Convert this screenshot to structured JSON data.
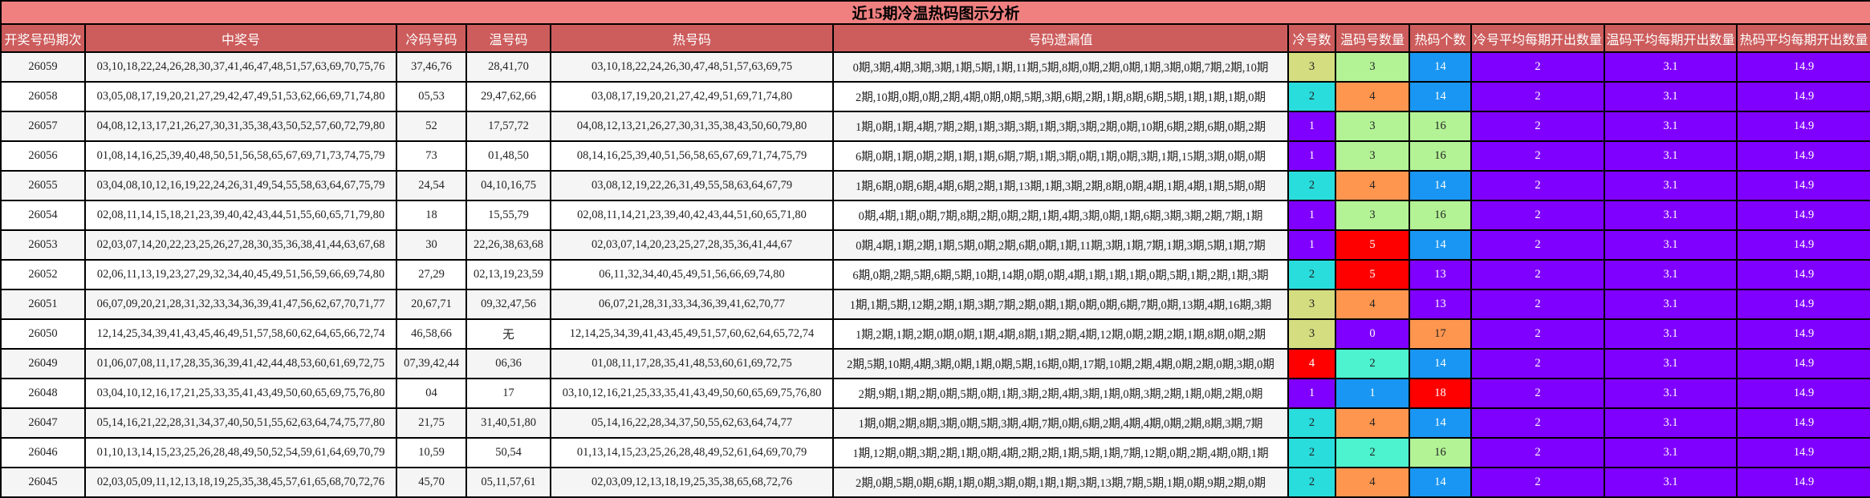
{
  "title": "近15期冷温热码图示分析",
  "headers": [
    "开奖号码期次",
    "中奖号",
    "冷码号码",
    "温号码",
    "热号码",
    "号码遗漏值",
    "冷号数",
    "温码号数量",
    "热码个数",
    "冷号平均每期开出数量",
    "温码平均每期开出数量",
    "热码平均每期开出数量"
  ],
  "colors": {
    "header_bg": "#cd5c5c",
    "title_bg": "#f08080",
    "purple": "#8000ff",
    "cyan": "#2adddd",
    "khaki": "#d4dd80",
    "red": "#ff0000",
    "blue": "#1996f3",
    "aqua": "#4df3ce",
    "green": "#b3f396",
    "orange": "#ff964f"
  },
  "rows": [
    {
      "issue": "26059",
      "winning": "03,10,18,22,24,26,28,30,37,41,46,47,48,51,57,63,69,70,75,76",
      "cold": "37,46,76",
      "warm": "28,41,70",
      "hot": "03,10,18,22,24,26,30,47,48,51,57,63,69,75",
      "missing": "0期,3期,4期,3期,3期,1期,5期,1期,11期,5期,8期,0期,2期,0期,1期,3期,0期,7期,2期,10期",
      "cold_count": "3",
      "warm_count": "3",
      "hot_count": "14",
      "cold_avg": "2",
      "warm_avg": "3.1",
      "hot_avg": "14.9",
      "cold_color": "#d4dd80",
      "warm_color": "#b3f396",
      "hot_color": "#1996f3"
    },
    {
      "issue": "26058",
      "winning": "03,05,08,17,19,20,21,27,29,42,47,49,51,53,62,66,69,71,74,80",
      "cold": "05,53",
      "warm": "29,47,62,66",
      "hot": "03,08,17,19,20,21,27,42,49,51,69,71,74,80",
      "missing": "2期,10期,0期,0期,2期,4期,0期,0期,5期,3期,6期,2期,1期,8期,6期,5期,1期,1期,1期,0期",
      "cold_count": "2",
      "warm_count": "4",
      "hot_count": "14",
      "cold_avg": "2",
      "warm_avg": "3.1",
      "hot_avg": "14.9",
      "cold_color": "#2adddd",
      "warm_color": "#ff964f",
      "hot_color": "#1996f3"
    },
    {
      "issue": "26057",
      "winning": "04,08,12,13,17,21,26,27,30,31,35,38,43,50,52,57,60,72,79,80",
      "cold": "52",
      "warm": "17,57,72",
      "hot": "04,08,12,13,21,26,27,30,31,35,38,43,50,60,79,80",
      "missing": "1期,0期,1期,4期,7期,2期,1期,3期,3期,1期,3期,3期,2期,0期,10期,6期,2期,6期,0期,2期",
      "cold_count": "1",
      "warm_count": "3",
      "hot_count": "16",
      "cold_avg": "2",
      "warm_avg": "3.1",
      "hot_avg": "14.9",
      "cold_color": "#8000ff",
      "warm_color": "#b3f396",
      "hot_color": "#b3f396"
    },
    {
      "issue": "26056",
      "winning": "01,08,14,16,25,39,40,48,50,51,56,58,65,67,69,71,73,74,75,79",
      "cold": "73",
      "warm": "01,48,50",
      "hot": "08,14,16,25,39,40,51,56,58,65,67,69,71,74,75,79",
      "missing": "6期,0期,1期,0期,2期,1期,1期,6期,7期,1期,3期,0期,1期,0期,3期,1期,15期,3期,0期,0期",
      "cold_count": "1",
      "warm_count": "3",
      "hot_count": "16",
      "cold_avg": "2",
      "warm_avg": "3.1",
      "hot_avg": "14.9",
      "cold_color": "#8000ff",
      "warm_color": "#b3f396",
      "hot_color": "#b3f396"
    },
    {
      "issue": "26055",
      "winning": "03,04,08,10,12,16,19,22,24,26,31,49,54,55,58,63,64,67,75,79",
      "cold": "24,54",
      "warm": "04,10,16,75",
      "hot": "03,08,12,19,22,26,31,49,55,58,63,64,67,79",
      "missing": "1期,6期,0期,6期,4期,6期,2期,1期,13期,1期,3期,2期,8期,0期,4期,1期,4期,1期,5期,0期",
      "cold_count": "2",
      "warm_count": "4",
      "hot_count": "14",
      "cold_avg": "2",
      "warm_avg": "3.1",
      "hot_avg": "14.9",
      "cold_color": "#2adddd",
      "warm_color": "#ff964f",
      "hot_color": "#1996f3"
    },
    {
      "issue": "26054",
      "winning": "02,08,11,14,15,18,21,23,39,40,42,43,44,51,55,60,65,71,79,80",
      "cold": "18",
      "warm": "15,55,79",
      "hot": "02,08,11,14,21,23,39,40,42,43,44,51,60,65,71,80",
      "missing": "0期,4期,1期,0期,7期,8期,2期,0期,2期,1期,4期,3期,0期,1期,6期,3期,3期,2期,7期,1期",
      "cold_count": "1",
      "warm_count": "3",
      "hot_count": "16",
      "cold_avg": "2",
      "warm_avg": "3.1",
      "hot_avg": "14.9",
      "cold_color": "#8000ff",
      "warm_color": "#b3f396",
      "hot_color": "#b3f396"
    },
    {
      "issue": "26053",
      "winning": "02,03,07,14,20,22,23,25,26,27,28,30,35,36,38,41,44,63,67,68",
      "cold": "30",
      "warm": "22,26,38,63,68",
      "hot": "02,03,07,14,20,23,25,27,28,35,36,41,44,67",
      "missing": "0期,4期,1期,2期,1期,5期,0期,2期,6期,0期,1期,11期,3期,1期,7期,1期,3期,5期,1期,7期",
      "cold_count": "1",
      "warm_count": "5",
      "hot_count": "14",
      "cold_avg": "2",
      "warm_avg": "3.1",
      "hot_avg": "14.9",
      "cold_color": "#8000ff",
      "warm_color": "#ff0000",
      "hot_color": "#1996f3"
    },
    {
      "issue": "26052",
      "winning": "02,06,11,13,19,23,27,29,32,34,40,45,49,51,56,59,66,69,74,80",
      "cold": "27,29",
      "warm": "02,13,19,23,59",
      "hot": "06,11,32,34,40,45,49,51,56,66,69,74,80",
      "missing": "6期,0期,2期,5期,6期,5期,10期,14期,0期,0期,4期,1期,1期,1期,0期,5期,1期,2期,1期,3期",
      "cold_count": "2",
      "warm_count": "5",
      "hot_count": "13",
      "cold_avg": "2",
      "warm_avg": "3.1",
      "hot_avg": "14.9",
      "cold_color": "#2adddd",
      "warm_color": "#ff0000",
      "hot_color": "#8000ff"
    },
    {
      "issue": "26051",
      "winning": "06,07,09,20,21,28,31,32,33,34,36,39,41,47,56,62,67,70,71,77",
      "cold": "20,67,71",
      "warm": "09,32,47,56",
      "hot": "06,07,21,28,31,33,34,36,39,41,62,70,77",
      "missing": "1期,1期,5期,12期,2期,1期,3期,7期,2期,0期,1期,0期,0期,6期,7期,0期,13期,4期,16期,3期",
      "cold_count": "3",
      "warm_count": "4",
      "hot_count": "13",
      "cold_avg": "2",
      "warm_avg": "3.1",
      "hot_avg": "14.9",
      "cold_color": "#d4dd80",
      "warm_color": "#ff964f",
      "hot_color": "#8000ff"
    },
    {
      "issue": "26050",
      "winning": "12,14,25,34,39,41,43,45,46,49,51,57,58,60,62,64,65,66,72,74",
      "cold": "46,58,66",
      "warm": "无",
      "hot": "12,14,25,34,39,41,43,45,49,51,57,60,62,64,65,72,74",
      "missing": "1期,2期,1期,2期,0期,0期,1期,4期,8期,1期,2期,4期,12期,0期,2期,2期,1期,8期,0期,2期",
      "cold_count": "3",
      "warm_count": "0",
      "hot_count": "17",
      "cold_avg": "2",
      "warm_avg": "3.1",
      "hot_avg": "14.9",
      "cold_color": "#d4dd80",
      "warm_color": "#8000ff",
      "hot_color": "#ff964f"
    },
    {
      "issue": "26049",
      "winning": "01,06,07,08,11,17,28,35,36,39,41,42,44,48,53,60,61,69,72,75",
      "cold": "07,39,42,44",
      "warm": "06,36",
      "hot": "01,08,11,17,28,35,41,48,53,60,61,69,72,75",
      "missing": "2期,5期,10期,4期,3期,0期,1期,0期,5期,16期,0期,17期,10期,2期,4期,0期,2期,0期,3期,0期",
      "cold_count": "4",
      "warm_count": "2",
      "hot_count": "14",
      "cold_avg": "2",
      "warm_avg": "3.1",
      "hot_avg": "14.9",
      "cold_color": "#ff0000",
      "warm_color": "#4df3ce",
      "hot_color": "#1996f3"
    },
    {
      "issue": "26048",
      "winning": "03,04,10,12,16,17,21,25,33,35,41,43,49,50,60,65,69,75,76,80",
      "cold": "04",
      "warm": "17",
      "hot": "03,10,12,16,21,25,33,35,41,43,49,50,60,65,69,75,76,80",
      "missing": "2期,9期,1期,2期,0期,5期,0期,1期,3期,2期,4期,3期,1期,0期,3期,2期,1期,0期,2期,0期",
      "cold_count": "1",
      "warm_count": "1",
      "hot_count": "18",
      "cold_avg": "2",
      "warm_avg": "3.1",
      "hot_avg": "14.9",
      "cold_color": "#8000ff",
      "warm_color": "#1996f3",
      "hot_color": "#ff0000"
    },
    {
      "issue": "26047",
      "winning": "05,14,16,21,22,28,31,34,37,40,50,51,55,62,63,64,74,75,77,80",
      "cold": "21,75",
      "warm": "31,40,51,80",
      "hot": "05,14,16,22,28,34,37,50,55,62,63,64,74,77",
      "missing": "1期,0期,2期,8期,3期,0期,5期,3期,4期,7期,0期,6期,2期,4期,4期,0期,2期,8期,3期,7期",
      "cold_count": "2",
      "warm_count": "4",
      "hot_count": "14",
      "cold_avg": "2",
      "warm_avg": "3.1",
      "hot_avg": "14.9",
      "cold_color": "#2adddd",
      "warm_color": "#ff964f",
      "hot_color": "#1996f3"
    },
    {
      "issue": "26046",
      "winning": "01,10,13,14,15,23,25,26,28,48,49,50,52,54,59,61,64,69,70,79",
      "cold": "10,59",
      "warm": "50,54",
      "hot": "01,13,14,15,23,25,26,28,48,49,52,61,64,69,70,79",
      "missing": "1期,12期,0期,3期,2期,1期,0期,4期,2期,2期,1期,5期,1期,7期,12期,0期,2期,4期,0期,1期",
      "cold_count": "2",
      "warm_count": "2",
      "hot_count": "16",
      "cold_avg": "2",
      "warm_avg": "3.1",
      "hot_avg": "14.9",
      "cold_color": "#2adddd",
      "warm_color": "#4df3ce",
      "hot_color": "#b3f396"
    },
    {
      "issue": "26045",
      "winning": "02,03,05,09,11,12,13,18,19,25,35,38,45,57,61,65,68,70,72,76",
      "cold": "45,70",
      "warm": "05,11,57,61",
      "hot": "02,03,09,12,13,18,19,25,35,38,65,68,72,76",
      "missing": "2期,0期,5期,0期,6期,1期,0期,3期,0期,1期,1期,3期,13期,7期,5期,1期,0期,9期,2期,0期",
      "cold_count": "2",
      "warm_count": "4",
      "hot_count": "14",
      "cold_avg": "2",
      "warm_avg": "3.1",
      "hot_avg": "14.9",
      "cold_color": "#2adddd",
      "warm_color": "#ff964f",
      "hot_color": "#1996f3"
    }
  ]
}
